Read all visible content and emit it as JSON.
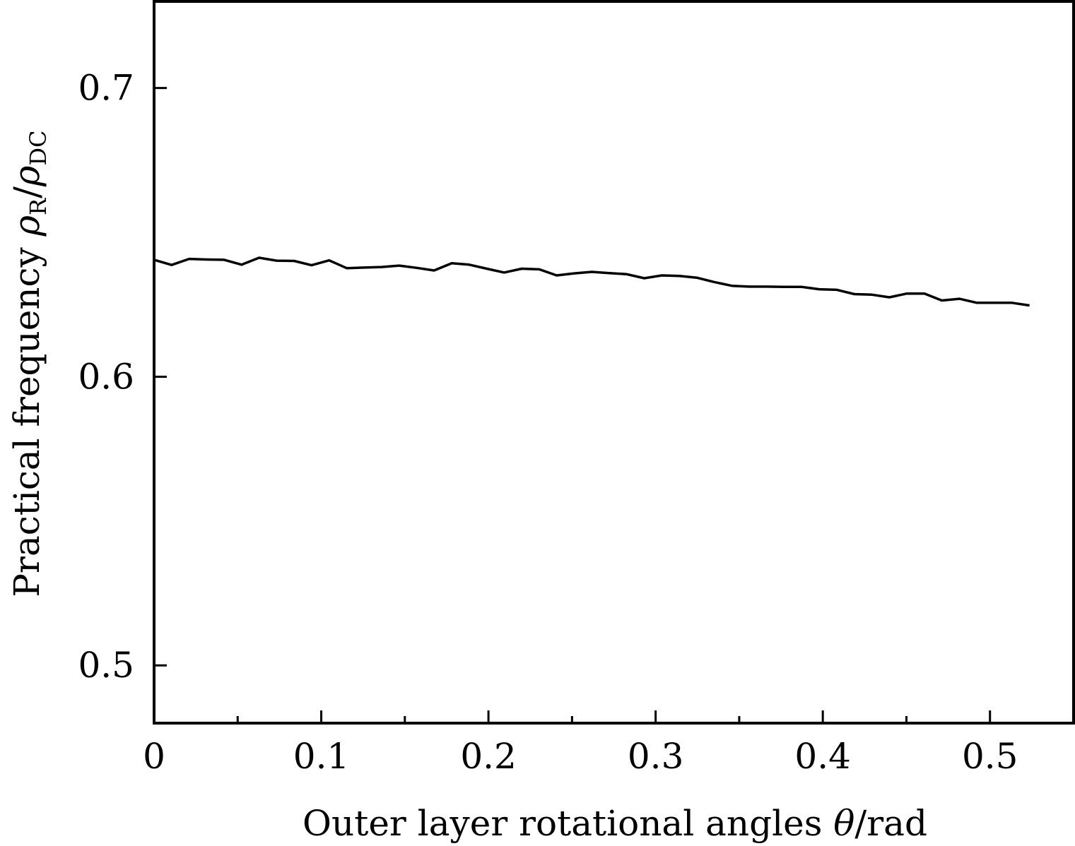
{
  "chart_data": {
    "type": "line",
    "xlabel": {
      "text": "Outer layer rotational angles ",
      "symbol": "θ",
      "unit": "/rad"
    },
    "ylabel": {
      "text": "Practical frequency ",
      "num_symbol": "ρ",
      "num_sub": "R",
      "slash": "/",
      "den_symbol": "ρ",
      "den_sub": "DC"
    },
    "xlim": [
      0,
      0.55
    ],
    "ylim": [
      0.48,
      0.73
    ],
    "x_ticks": [
      0,
      0.1,
      0.2,
      0.3,
      0.4,
      0.5
    ],
    "x_tick_labels": [
      "0",
      "0.1",
      "0.2",
      "0.3",
      "0.4",
      "0.5"
    ],
    "x_minor_ticks": [
      0.05,
      0.15,
      0.25,
      0.35,
      0.45
    ],
    "y_ticks": [
      0.5,
      0.6,
      0.7
    ],
    "y_tick_labels": [
      "0.5",
      "0.6",
      "0.7"
    ],
    "grid": false,
    "line_color": "#000000",
    "series": [
      {
        "x": [
          0,
          0.0105,
          0.021,
          0.0314,
          0.0419,
          0.0524,
          0.0628,
          0.0733,
          0.0838,
          0.0942,
          0.1047,
          0.1152,
          0.1257,
          0.1361,
          0.1466,
          0.1571,
          0.1675,
          0.178,
          0.1885,
          0.199,
          0.2094,
          0.2199,
          0.2304,
          0.2408,
          0.2513,
          0.2618,
          0.2723,
          0.2827,
          0.2932,
          0.3037,
          0.3142,
          0.3246,
          0.3351,
          0.3456,
          0.356,
          0.3665,
          0.377,
          0.3875,
          0.3979,
          0.4084,
          0.4189,
          0.4294,
          0.4398,
          0.4503,
          0.4608,
          0.4712,
          0.4817,
          0.4922,
          0.5027,
          0.5131,
          0.5236
        ],
        "y": [
          0.6405,
          0.6387,
          0.6408,
          0.6406,
          0.6405,
          0.6388,
          0.6412,
          0.6402,
          0.6401,
          0.6386,
          0.6403,
          0.6376,
          0.6378,
          0.638,
          0.6385,
          0.6377,
          0.6368,
          0.6393,
          0.6388,
          0.6374,
          0.6361,
          0.6374,
          0.6372,
          0.6351,
          0.6358,
          0.6363,
          0.6359,
          0.6355,
          0.6341,
          0.6351,
          0.6349,
          0.6343,
          0.6328,
          0.6315,
          0.6312,
          0.6312,
          0.6311,
          0.6311,
          0.6303,
          0.6301,
          0.6286,
          0.6284,
          0.6275,
          0.6288,
          0.6288,
          0.6264,
          0.627,
          0.6256,
          0.6256,
          0.6256,
          0.6247
        ]
      }
    ]
  }
}
